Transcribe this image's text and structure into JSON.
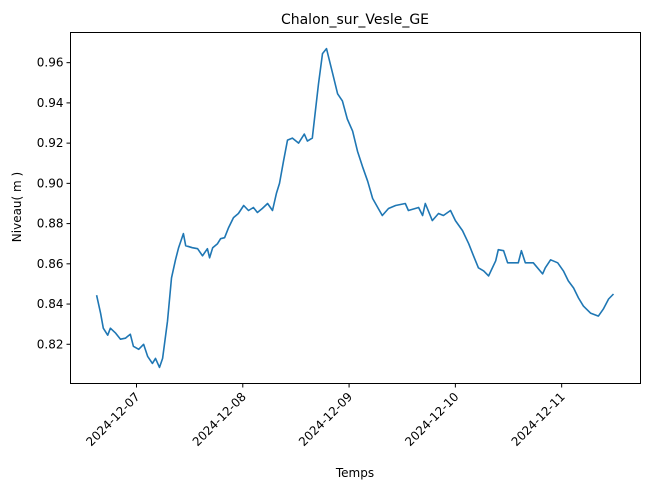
{
  "chart_data": {
    "type": "line",
    "title": "Chalon_sur_Vesle_GE",
    "xlabel": "Temps",
    "ylabel": "Niveau( m )",
    "x_unit": "hours since 2024-12-07 00:00",
    "xlim": [
      -14.9,
      113.8
    ],
    "ylim": [
      0.8005,
      0.975
    ],
    "grid": false,
    "color": "#1f77b4",
    "xticks": [
      {
        "value": 0,
        "label": "2024-12-07"
      },
      {
        "value": 24,
        "label": "2024-12-08"
      },
      {
        "value": 48,
        "label": "2024-12-09"
      },
      {
        "value": 72,
        "label": "2024-12-10"
      },
      {
        "value": 96,
        "label": "2024-12-11"
      }
    ],
    "yticks": [
      {
        "value": 0.82,
        "label": "0.82"
      },
      {
        "value": 0.84,
        "label": "0.84"
      },
      {
        "value": 0.86,
        "label": "0.86"
      },
      {
        "value": 0.88,
        "label": "0.88"
      },
      {
        "value": 0.9,
        "label": "0.90"
      },
      {
        "value": 0.92,
        "label": "0.92"
      },
      {
        "value": 0.94,
        "label": "0.94"
      },
      {
        "value": 0.96,
        "label": "0.96"
      }
    ],
    "series": [
      {
        "name": "Niveau",
        "x": [
          -9.0,
          -8.1,
          -7.5,
          -6.5,
          -5.9,
          -4.7,
          -3.6,
          -2.5,
          -1.4,
          -0.7,
          0.5,
          1.6,
          2.5,
          3.6,
          4.3,
          5.2,
          5.9,
          7.0,
          7.9,
          8.8,
          9.5,
          10.6,
          11.1,
          12.6,
          13.8,
          14.9,
          16.0,
          16.5,
          17.2,
          18.3,
          19.0,
          19.9,
          20.8,
          21.9,
          23.0,
          24.2,
          25.3,
          26.4,
          27.3,
          28.4,
          29.6,
          30.7,
          31.6,
          32.3,
          33.2,
          34.1,
          35.2,
          36.6,
          37.9,
          38.6,
          39.7,
          40.4,
          41.1,
          42.0,
          42.9,
          43.4,
          44.3,
          45.4,
          46.5,
          47.6,
          48.8,
          49.9,
          51.0,
          52.2,
          53.3,
          54.6,
          55.5,
          56.9,
          58.5,
          60.7,
          61.4,
          63.7,
          64.6,
          65.2,
          66.8,
          68.2,
          69.3,
          70.9,
          72.0,
          73.6,
          75.0,
          76.1,
          77.2,
          78.4,
          79.5,
          81.1,
          81.7,
          82.9,
          83.8,
          85.1,
          86.2,
          86.9,
          87.8,
          89.6,
          91.7,
          92.3,
          93.5,
          95.1,
          96.4,
          97.5,
          98.7,
          99.8,
          100.9,
          102.5,
          104.3,
          105.4,
          106.6,
          107.7
        ],
        "y": [
          0.8444,
          0.8354,
          0.828,
          0.8245,
          0.828,
          0.8255,
          0.8225,
          0.823,
          0.825,
          0.819,
          0.8175,
          0.82,
          0.814,
          0.8105,
          0.813,
          0.8085,
          0.813,
          0.8315,
          0.853,
          0.862,
          0.868,
          0.875,
          0.869,
          0.868,
          0.8675,
          0.864,
          0.8675,
          0.863,
          0.868,
          0.87,
          0.8725,
          0.873,
          0.878,
          0.883,
          0.885,
          0.889,
          0.8865,
          0.888,
          0.8855,
          0.8875,
          0.89,
          0.8865,
          0.895,
          0.9,
          0.911,
          0.9215,
          0.9225,
          0.92,
          0.9245,
          0.921,
          0.9225,
          0.936,
          0.9495,
          0.9645,
          0.967,
          0.9625,
          0.9545,
          0.9445,
          0.941,
          0.932,
          0.926,
          0.916,
          0.9085,
          0.901,
          0.8925,
          0.8875,
          0.884,
          0.8875,
          0.889,
          0.89,
          0.8865,
          0.888,
          0.884,
          0.89,
          0.8815,
          0.885,
          0.884,
          0.8865,
          0.8815,
          0.8765,
          0.87,
          0.864,
          0.858,
          0.8565,
          0.854,
          0.8615,
          0.867,
          0.8665,
          0.8605,
          0.8605,
          0.8605,
          0.8665,
          0.8605,
          0.8605,
          0.855,
          0.858,
          0.862,
          0.8605,
          0.8565,
          0.8515,
          0.848,
          0.843,
          0.839,
          0.8355,
          0.834,
          0.8375,
          0.8425,
          0.845
        ]
      }
    ]
  }
}
